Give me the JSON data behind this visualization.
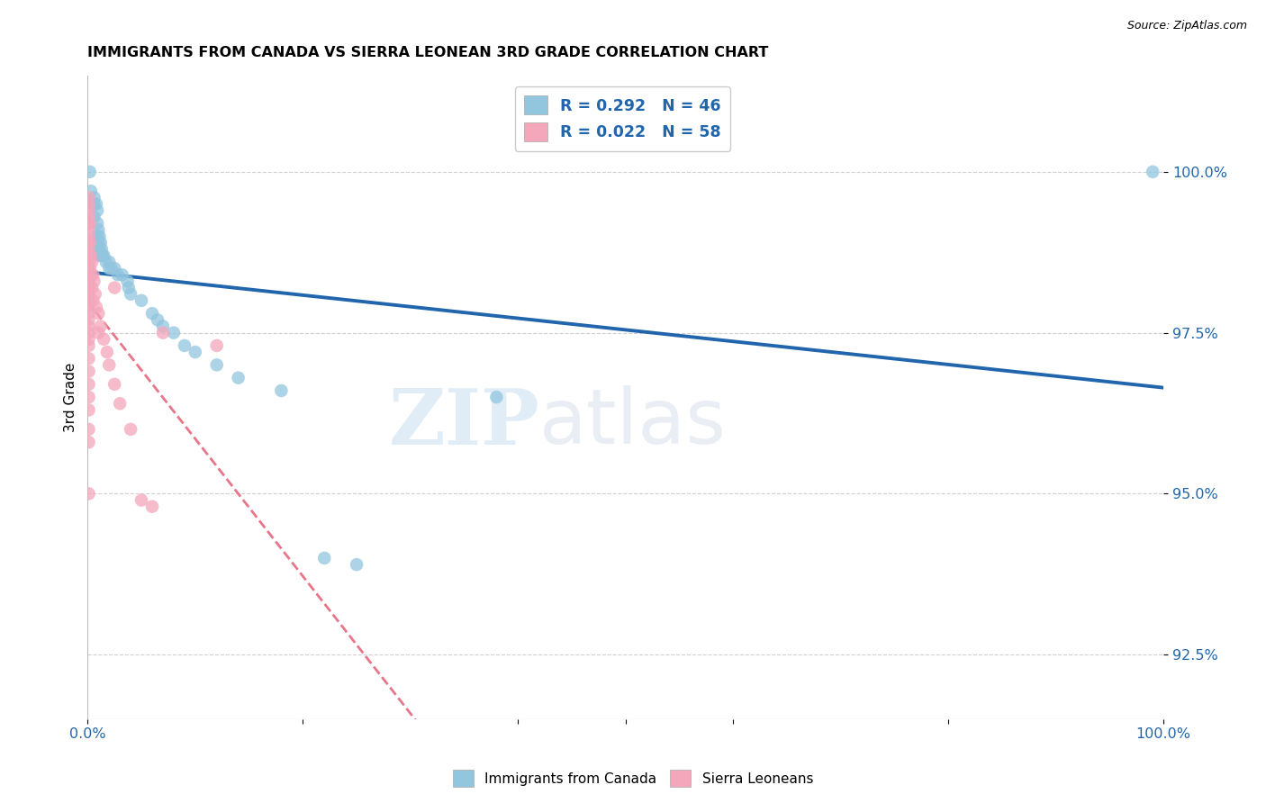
{
  "title": "IMMIGRANTS FROM CANADA VS SIERRA LEONEAN 3RD GRADE CORRELATION CHART",
  "source": "Source: ZipAtlas.com",
  "ylabel": "3rd Grade",
  "yticks": [
    92.5,
    95.0,
    97.5,
    100.0
  ],
  "ytick_labels": [
    "92.5%",
    "95.0%",
    "97.5%",
    "100.0%"
  ],
  "xlim": [
    0.0,
    1.0
  ],
  "ylim": [
    91.5,
    101.5
  ],
  "watermark_zip": "ZIP",
  "watermark_atlas": "atlas",
  "canada_color": "#92c5de",
  "sierraleone_color": "#f4a6bb",
  "canada_R": 0.292,
  "canada_N": 46,
  "sierraleone_R": 0.022,
  "sierraleone_N": 58,
  "canada_points": [
    [
      0.002,
      100.0
    ],
    [
      0.003,
      99.7
    ],
    [
      0.003,
      99.5
    ],
    [
      0.006,
      99.6
    ],
    [
      0.006,
      99.5
    ],
    [
      0.006,
      99.3
    ],
    [
      0.008,
      99.5
    ],
    [
      0.009,
      99.4
    ],
    [
      0.009,
      99.2
    ],
    [
      0.009,
      99.0
    ],
    [
      0.009,
      98.8
    ],
    [
      0.01,
      99.1
    ],
    [
      0.01,
      98.9
    ],
    [
      0.01,
      98.7
    ],
    [
      0.011,
      99.0
    ],
    [
      0.011,
      98.8
    ],
    [
      0.012,
      98.9
    ],
    [
      0.012,
      98.7
    ],
    [
      0.013,
      98.8
    ],
    [
      0.013,
      98.7
    ],
    [
      0.014,
      98.7
    ],
    [
      0.015,
      98.7
    ],
    [
      0.017,
      98.6
    ],
    [
      0.02,
      98.6
    ],
    [
      0.02,
      98.5
    ],
    [
      0.022,
      98.5
    ],
    [
      0.025,
      98.5
    ],
    [
      0.028,
      98.4
    ],
    [
      0.032,
      98.4
    ],
    [
      0.037,
      98.3
    ],
    [
      0.038,
      98.2
    ],
    [
      0.04,
      98.1
    ],
    [
      0.05,
      98.0
    ],
    [
      0.06,
      97.8
    ],
    [
      0.065,
      97.7
    ],
    [
      0.07,
      97.6
    ],
    [
      0.08,
      97.5
    ],
    [
      0.09,
      97.3
    ],
    [
      0.1,
      97.2
    ],
    [
      0.12,
      97.0
    ],
    [
      0.14,
      96.8
    ],
    [
      0.18,
      96.6
    ],
    [
      0.22,
      94.0
    ],
    [
      0.25,
      93.9
    ],
    [
      0.38,
      96.5
    ],
    [
      0.99,
      100.0
    ]
  ],
  "sierraleone_points": [
    [
      0.001,
      99.6
    ],
    [
      0.001,
      99.5
    ],
    [
      0.001,
      99.4
    ],
    [
      0.001,
      99.3
    ],
    [
      0.001,
      99.2
    ],
    [
      0.001,
      99.1
    ],
    [
      0.001,
      99.0
    ],
    [
      0.001,
      98.9
    ],
    [
      0.001,
      98.8
    ],
    [
      0.001,
      98.7
    ],
    [
      0.001,
      98.6
    ],
    [
      0.001,
      98.5
    ],
    [
      0.001,
      98.4
    ],
    [
      0.001,
      98.3
    ],
    [
      0.001,
      98.2
    ],
    [
      0.001,
      98.1
    ],
    [
      0.001,
      98.0
    ],
    [
      0.001,
      97.9
    ],
    [
      0.001,
      97.8
    ],
    [
      0.001,
      97.7
    ],
    [
      0.001,
      97.6
    ],
    [
      0.001,
      97.5
    ],
    [
      0.001,
      97.4
    ],
    [
      0.001,
      97.3
    ],
    [
      0.001,
      97.1
    ],
    [
      0.001,
      96.9
    ],
    [
      0.001,
      96.7
    ],
    [
      0.001,
      96.5
    ],
    [
      0.001,
      96.3
    ],
    [
      0.001,
      96.0
    ],
    [
      0.001,
      95.8
    ],
    [
      0.001,
      95.0
    ],
    [
      0.002,
      99.2
    ],
    [
      0.002,
      98.9
    ],
    [
      0.002,
      98.5
    ],
    [
      0.003,
      98.7
    ],
    [
      0.003,
      98.4
    ],
    [
      0.004,
      98.6
    ],
    [
      0.004,
      98.2
    ],
    [
      0.005,
      98.4
    ],
    [
      0.005,
      98.0
    ],
    [
      0.006,
      98.3
    ],
    [
      0.007,
      98.1
    ],
    [
      0.008,
      97.9
    ],
    [
      0.01,
      97.8
    ],
    [
      0.01,
      97.5
    ],
    [
      0.012,
      97.6
    ],
    [
      0.015,
      97.4
    ],
    [
      0.018,
      97.2
    ],
    [
      0.02,
      97.0
    ],
    [
      0.025,
      98.2
    ],
    [
      0.025,
      96.7
    ],
    [
      0.03,
      96.4
    ],
    [
      0.04,
      96.0
    ],
    [
      0.05,
      94.9
    ],
    [
      0.06,
      94.8
    ],
    [
      0.07,
      97.5
    ],
    [
      0.12,
      97.3
    ]
  ],
  "canada_line_color": "#2166ac",
  "sierraleone_line_color": "#e8768a",
  "grid_color": "#d0d0d0",
  "background_color": "#ffffff",
  "title_fontsize": 11.5,
  "source_fontsize": 9,
  "legend_label_color": "#2166ac",
  "tick_color": "#2166ac",
  "legend1_label": "R = 0.292   N = 46",
  "legend2_label": "R = 0.022   N = 58",
  "bottom_legend1": "Immigrants from Canada",
  "bottom_legend2": "Sierra Leoneans"
}
